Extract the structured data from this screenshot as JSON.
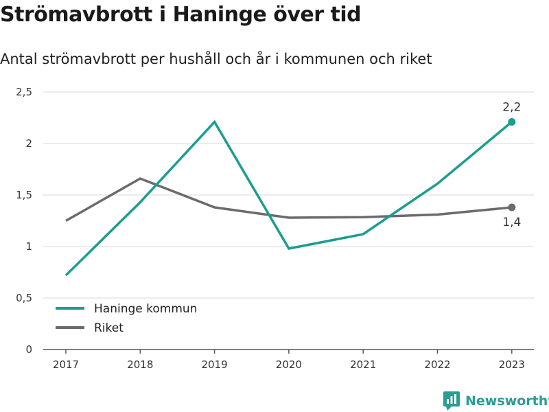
{
  "title": "Strömavbrott i Haninge över tid",
  "subtitle": "Antal strömavbrott per hushåll och år i kommunen och riket",
  "logo_text": "Newsworthy",
  "colors": {
    "haninge": "#1a9e8f",
    "riket": "#6b6b6b",
    "grid": "#d9d9d9",
    "axis": "#555555",
    "brand": "#2a9d93"
  },
  "chart_data": {
    "type": "line",
    "x": [
      "2017",
      "2018",
      "2019",
      "2020",
      "2021",
      "2022",
      "2023"
    ],
    "ylim": [
      0,
      2.5
    ],
    "y_ticks": [
      0,
      0.5,
      1,
      1.5,
      2,
      2.5
    ],
    "y_tick_labels": [
      "0",
      "0,5",
      "1",
      "1,5",
      "2",
      "2,5"
    ],
    "grid": true,
    "legend_position": "bottom-left",
    "series": [
      {
        "name": "Haninge kommun",
        "color": "#1a9e8f",
        "values": [
          0.72,
          1.43,
          2.21,
          0.98,
          1.12,
          1.61,
          2.21
        ],
        "end_label": "2,2"
      },
      {
        "name": "Riket",
        "color": "#6b6b6b",
        "values": [
          1.25,
          1.66,
          1.38,
          1.28,
          1.285,
          1.31,
          1.38
        ],
        "end_label": "1,4"
      }
    ]
  }
}
